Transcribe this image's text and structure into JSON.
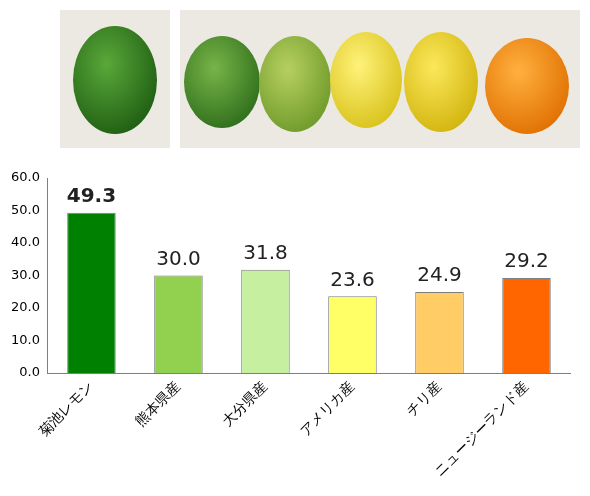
{
  "chart_data": {
    "type": "bar",
    "categories": [
      "菊池レモン",
      "熊本県産",
      "大分県産",
      "アメリカ産",
      "チリ産",
      "ニュージーランド産"
    ],
    "values": [
      49.3,
      30.0,
      31.8,
      23.6,
      24.9,
      29.2
    ],
    "value_labels": [
      "49.3",
      "30.0",
      "31.8",
      "23.6",
      "24.9",
      "29.2"
    ],
    "colors": [
      "#008000",
      "#92d050",
      "#c6efa0",
      "#ffff66",
      "#ffcc66",
      "#ff6600"
    ],
    "ylim": [
      0,
      60
    ],
    "yticks": [
      {
        "value": 0,
        "label": "0.0"
      },
      {
        "value": 10,
        "label": "10.0"
      },
      {
        "value": 20,
        "label": "20.0"
      },
      {
        "value": 30,
        "label": "30.0"
      },
      {
        "value": 40,
        "label": "40.0"
      },
      {
        "value": 50,
        "label": "50.0"
      },
      {
        "value": 60,
        "label": "60.0"
      }
    ],
    "grid": false,
    "data_labels": true
  }
}
